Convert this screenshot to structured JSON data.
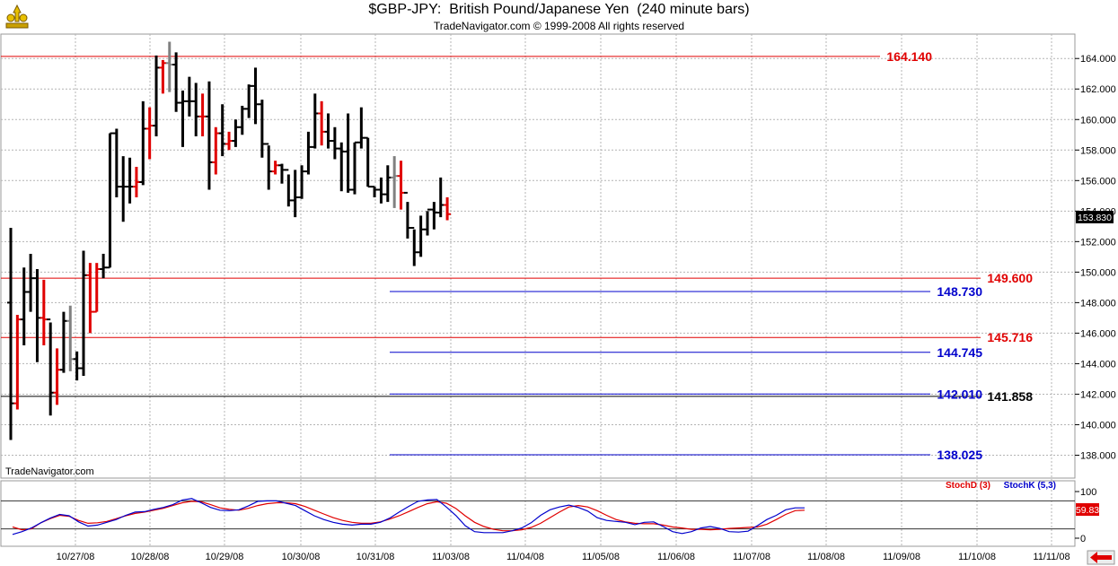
{
  "header": {
    "title": "$GBP-JPY:  British Pound/Japanese Yen  (240 minute bars)",
    "copyright": "TradeNavigator.com © 1999-2008 All rights reserved",
    "watermark": "TradeNavigator.com"
  },
  "chart_data": [
    {
      "type": "ohlc",
      "ylim": [
        136.5,
        165.6
      ],
      "y_ticks": [
        "138.000",
        "140.000",
        "142.000",
        "144.000",
        "146.000",
        "148.000",
        "150.000",
        "152.000",
        "154.000",
        "156.000",
        "158.000",
        "160.000",
        "162.000",
        "164.000"
      ],
      "x_ticks": [
        "10/27/08",
        "10/28/08",
        "10/29/08",
        "10/30/08",
        "10/31/08",
        "11/03/08",
        "11/04/08",
        "11/05/08",
        "11/06/08",
        "11/07/08",
        "11/08/08",
        "11/09/08",
        "11/10/08",
        "11/11/08"
      ],
      "last_price": "153.830",
      "colors": {
        "up": "#000000",
        "down": "#e00000",
        "neutral": "#808080"
      },
      "bars": [
        [
          148,
          152.9,
          139,
          141.4,
          "u"
        ],
        [
          141.4,
          147.2,
          141,
          146.9,
          "d"
        ],
        [
          146.9,
          150.3,
          145.2,
          148.7,
          "u"
        ],
        [
          148.7,
          151.2,
          147.4,
          149.6,
          "u"
        ],
        [
          149.6,
          150.2,
          144.1,
          147,
          "u"
        ],
        [
          147,
          149.5,
          145.2,
          146.9,
          "d"
        ],
        [
          146.9,
          146.7,
          140.6,
          142.1,
          "u"
        ],
        [
          142.1,
          145,
          141.3,
          143.6,
          "d"
        ],
        [
          143.6,
          147.4,
          143.4,
          146.8,
          "u"
        ],
        [
          146.8,
          147.8,
          143.5,
          144.3,
          "n"
        ],
        [
          144.3,
          144.8,
          142.9,
          143.7,
          "u"
        ],
        [
          143.7,
          151.4,
          143.2,
          149.8,
          "u"
        ],
        [
          149.8,
          150.6,
          146,
          147.4,
          "d"
        ],
        [
          147.4,
          150.6,
          147.4,
          150.2,
          "d"
        ],
        [
          150.2,
          151.2,
          149.6,
          150.3,
          "u"
        ],
        [
          150.3,
          159.1,
          150.3,
          159.1,
          "u"
        ],
        [
          159.1,
          159.4,
          154.9,
          155.6,
          "u"
        ],
        [
          155.6,
          157.6,
          153.3,
          155.6,
          "u"
        ],
        [
          155.6,
          157.5,
          154.5,
          155.6,
          "u"
        ],
        [
          155.6,
          156.9,
          154.9,
          155.9,
          "d"
        ],
        [
          155.9,
          161.2,
          155.7,
          159.4,
          "u"
        ],
        [
          159.4,
          160.8,
          157.4,
          159.6,
          "d"
        ],
        [
          159.6,
          164.2,
          158.9,
          163.4,
          "u"
        ],
        [
          163.4,
          163.9,
          161.7,
          163.7,
          "d"
        ],
        [
          163.7,
          165.1,
          161.8,
          163.6,
          "n"
        ],
        [
          163.6,
          164.4,
          160.5,
          161.1,
          "u"
        ],
        [
          161.1,
          161.9,
          158.2,
          161.2,
          "u"
        ],
        [
          161.2,
          162.8,
          160.2,
          161.2,
          "u"
        ],
        [
          161.2,
          162.4,
          158.9,
          160.2,
          "u"
        ],
        [
          160.2,
          161.7,
          158.9,
          160.2,
          "d"
        ],
        [
          160.2,
          162.5,
          155.4,
          157.2,
          "u"
        ],
        [
          157.2,
          159.5,
          156.4,
          159.1,
          "d"
        ],
        [
          159.1,
          161,
          157.6,
          158.4,
          "u"
        ],
        [
          158.4,
          159.2,
          158,
          158.6,
          "d"
        ],
        [
          158.6,
          160,
          158.2,
          159.5,
          "u"
        ],
        [
          159.5,
          160.9,
          159,
          160.7,
          "u"
        ],
        [
          160.7,
          162.3,
          160.1,
          162.2,
          "u"
        ],
        [
          162.2,
          163.4,
          159.7,
          161,
          "u"
        ],
        [
          161,
          161.3,
          157.5,
          158.4,
          "u"
        ],
        [
          158.4,
          158.3,
          155.4,
          156.6,
          "u"
        ],
        [
          156.6,
          157.3,
          156.4,
          157,
          "d"
        ],
        [
          157,
          157.1,
          155.8,
          156.7,
          "u"
        ],
        [
          156.7,
          156.4,
          154.3,
          154.7,
          "u"
        ],
        [
          154.7,
          156.7,
          153.6,
          154.9,
          "u"
        ],
        [
          154.9,
          157,
          154.8,
          156.6,
          "u"
        ],
        [
          156.6,
          159.2,
          156.4,
          158.2,
          "u"
        ],
        [
          158.2,
          161.7,
          158.1,
          160.4,
          "u"
        ],
        [
          160.4,
          161.2,
          158.3,
          159.2,
          "d"
        ],
        [
          159.2,
          160.4,
          158.1,
          158.6,
          "u"
        ],
        [
          158.6,
          159.5,
          157.4,
          158.1,
          "u"
        ],
        [
          158.1,
          158.5,
          155.3,
          157.9,
          "u"
        ],
        [
          157.9,
          160.4,
          155.2,
          155.4,
          "u"
        ],
        [
          155.4,
          158.5,
          155.1,
          158.5,
          "u"
        ],
        [
          158.5,
          160.8,
          158.1,
          158.8,
          "u"
        ],
        [
          158.8,
          158.8,
          155.6,
          155.6,
          "u"
        ],
        [
          155.6,
          155.6,
          154.9,
          155.4,
          "u"
        ],
        [
          155.4,
          156.2,
          154.5,
          155.1,
          "u"
        ],
        [
          155.1,
          157,
          154.6,
          156.2,
          "u"
        ],
        [
          156.2,
          157.6,
          154.2,
          156.3,
          "n"
        ],
        [
          156.3,
          157.3,
          154.1,
          155.2,
          "d"
        ],
        [
          155.2,
          154.6,
          152.2,
          152.9,
          "u"
        ],
        [
          152.9,
          152.8,
          150.4,
          151.3,
          "u"
        ],
        [
          151.3,
          153.7,
          151,
          152.8,
          "u"
        ],
        [
          152.8,
          154,
          152.4,
          154.1,
          "u"
        ],
        [
          154.1,
          154.6,
          152.8,
          153.9,
          "u"
        ],
        [
          153.9,
          156.2,
          153.6,
          154.4,
          "u"
        ],
        [
          154.4,
          154.9,
          153.4,
          153.8,
          "d"
        ]
      ],
      "levels": [
        {
          "label": "164.140",
          "value": 164.14,
          "color": "#e00000",
          "x_start": "10/27/08"
        },
        {
          "label": "149.600",
          "value": 149.6,
          "color": "#e00000",
          "x_start": "10/27/08"
        },
        {
          "label": "145.716",
          "value": 145.716,
          "color": "#e00000",
          "x_start": "10/27/08"
        },
        {
          "label": "141.858",
          "value": 141.858,
          "color": "#000000",
          "x_start": "10/27/08"
        },
        {
          "label": "148.730",
          "value": 148.73,
          "color": "#0000cc",
          "x_start": "10/31/08"
        },
        {
          "label": "144.745",
          "value": 144.745,
          "color": "#0000cc",
          "x_start": "10/31/08"
        },
        {
          "label": "142.010",
          "value": 142.01,
          "color": "#0000cc",
          "x_start": "10/31/08"
        },
        {
          "label": "138.025",
          "value": 138.025,
          "color": "#0000cc",
          "x_start": "10/31/08"
        }
      ]
    },
    {
      "type": "line",
      "ylim": [
        0,
        100
      ],
      "y_ticks": [
        "0",
        "100"
      ],
      "last_value": "59.83",
      "series": [
        {
          "name": "StochD (3)",
          "color": "#e00000",
          "values": [
            24,
            18,
            20,
            33,
            42,
            49,
            47,
            38,
            32,
            33,
            36,
            42,
            48,
            53,
            56,
            60,
            64,
            70,
            76,
            79,
            78,
            72,
            65,
            62,
            60,
            64,
            70,
            74,
            76,
            76,
            74,
            68,
            60,
            52,
            44,
            38,
            34,
            32,
            32,
            35,
            41,
            48,
            57,
            66,
            74,
            78,
            75,
            64,
            48,
            34,
            25,
            19,
            16,
            16,
            18,
            23,
            32,
            44,
            56,
            67,
            70,
            67,
            59,
            49,
            40,
            35,
            32,
            31,
            31,
            28,
            24,
            22,
            19,
            19,
            18,
            19,
            21,
            22,
            23,
            24,
            30,
            40,
            51,
            59,
            60
          ]
        },
        {
          "name": "StochK (5,3)",
          "color": "#0000cc",
          "values": [
            8,
            14,
            22,
            33,
            43,
            51,
            48,
            35,
            26,
            28,
            34,
            40,
            49,
            56,
            57,
            62,
            66,
            72,
            82,
            85,
            76,
            66,
            60,
            59,
            61,
            69,
            79,
            80,
            80,
            75,
            70,
            59,
            48,
            40,
            34,
            30,
            28,
            30,
            30,
            34,
            43,
            56,
            68,
            79,
            82,
            83,
            67,
            49,
            27,
            14,
            12,
            12,
            12,
            16,
            22,
            33,
            49,
            61,
            67,
            71,
            66,
            58,
            44,
            38,
            36,
            34,
            29,
            34,
            35,
            25,
            14,
            10,
            14,
            22,
            25,
            21,
            14,
            13,
            15,
            27,
            40,
            49,
            61,
            65,
            65
          ]
        }
      ]
    }
  ]
}
